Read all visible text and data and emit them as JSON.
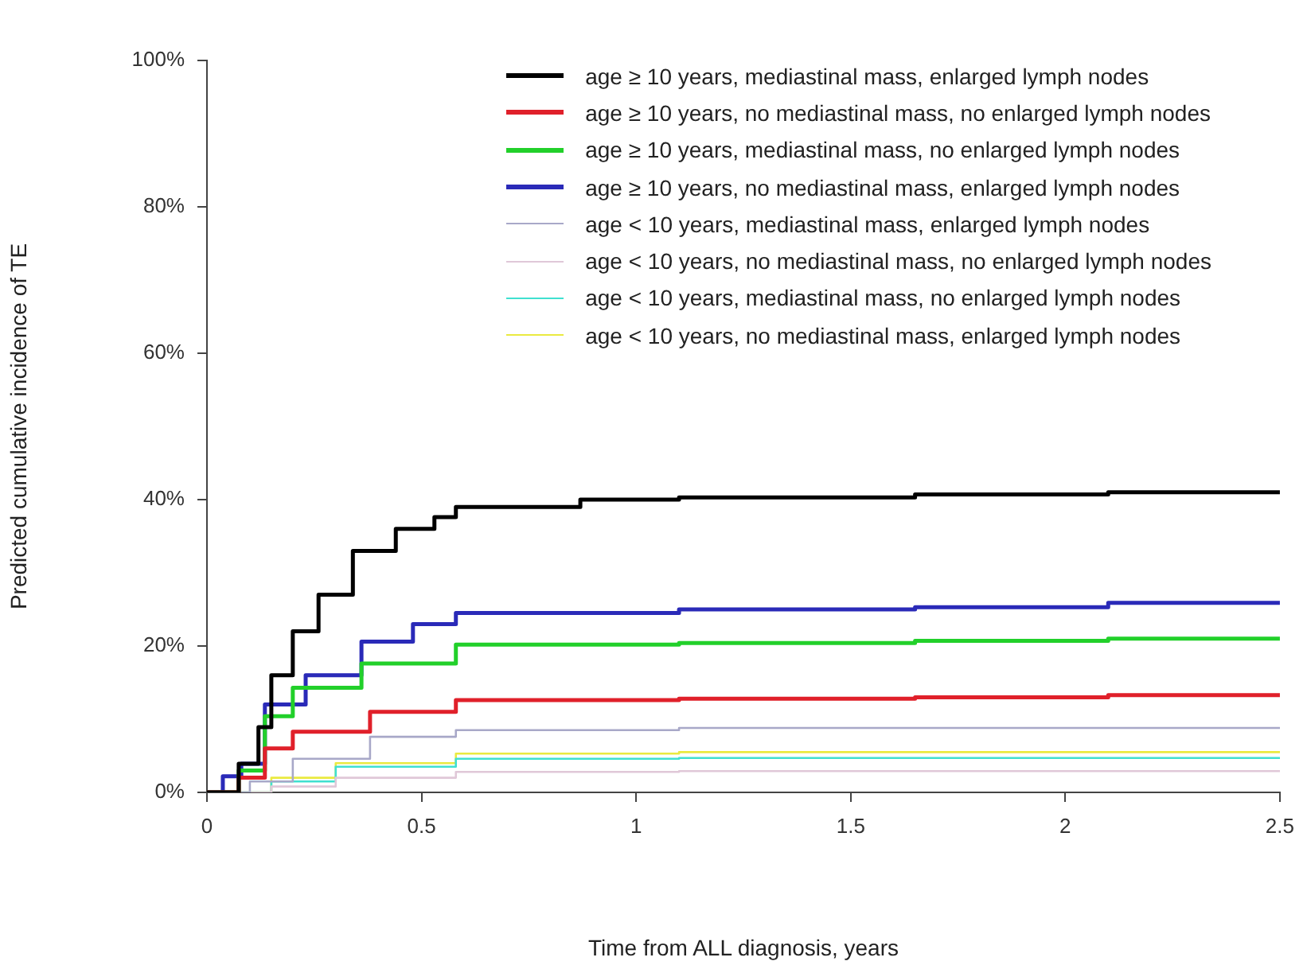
{
  "chart_data": {
    "type": "step",
    "xlabel": "Time from ALL diagnosis, years",
    "ylabel": "Predicted cumulative incidence of TE",
    "xlim": [
      0,
      2.5
    ],
    "xticks": [
      0,
      0.5,
      1,
      1.5,
      2,
      2.5
    ],
    "ylim": [
      0,
      100
    ],
    "yticks": [
      {
        "value": 0,
        "label": "0%"
      },
      {
        "value": 20,
        "label": "20%"
      },
      {
        "value": 40,
        "label": "40%"
      },
      {
        "value": 60,
        "label": "60%"
      },
      {
        "value": 80,
        "label": "80%"
      },
      {
        "value": 100,
        "label": "100%"
      }
    ],
    "grid": false,
    "legend": "top right",
    "series": [
      {
        "name": "age ≥ 10 years, mediastinal mass, enlarged lymph nodes",
        "color": "#000000",
        "x": [
          0,
          0.026,
          0.074,
          0.12,
          0.15,
          0.2,
          0.26,
          0.34,
          0.44,
          0.53,
          0.58,
          0.87,
          1.1,
          1.65,
          2.1,
          2.5
        ],
        "values": [
          0,
          0,
          3.9,
          8.9,
          16,
          22,
          27,
          33,
          36,
          37.6,
          39,
          40,
          40.3,
          40.7,
          41,
          41
        ]
      },
      {
        "name": "age ≥ 10 years, no mediastinal mass, no enlarged lymph nodes",
        "color": "#e0202a",
        "x": [
          0,
          0.03,
          0.074,
          0.135,
          0.2,
          0.38,
          0.58,
          1.1,
          1.65,
          2.1,
          2.5
        ],
        "values": [
          0,
          0,
          2,
          6,
          8.3,
          11,
          12.6,
          12.8,
          13,
          13.3,
          13.3
        ]
      },
      {
        "name": "age ≥ 10 years, mediastinal mass, no enlarged lymph nodes",
        "color": "#22d02a",
        "x": [
          0,
          0.03,
          0.074,
          0.135,
          0.2,
          0.36,
          0.58,
          1.1,
          1.65,
          2.1,
          2.5
        ],
        "values": [
          0,
          0,
          3,
          10.4,
          14.3,
          17.6,
          20.2,
          20.4,
          20.7,
          21,
          21
        ]
      },
      {
        "name": "age ≥ 10 years, no mediastinal mass, enlarged lymph nodes",
        "color": "#2a2ab8",
        "x": [
          0,
          0.037,
          0.08,
          0.135,
          0.23,
          0.36,
          0.48,
          0.58,
          1.1,
          1.65,
          2.1,
          2.5
        ],
        "values": [
          0,
          2.2,
          3.9,
          12,
          16,
          20.6,
          23,
          24.5,
          25,
          25.3,
          25.9,
          25.9
        ]
      },
      {
        "name": "age < 10 years, mediastinal mass, enlarged lymph nodes",
        "color": "#a8a8c8",
        "x": [
          0,
          0.03,
          0.1,
          0.2,
          0.38,
          0.58,
          1.1,
          2.5
        ],
        "values": [
          0,
          0,
          1.5,
          4.6,
          7.6,
          8.5,
          8.8,
          8.9
        ]
      },
      {
        "name": "age < 10 years, no mediastinal mass, no enlarged lymph nodes",
        "color": "#e0c8d8",
        "x": [
          0,
          0.05,
          0.15,
          0.3,
          0.58,
          1.1,
          2.5
        ],
        "values": [
          0,
          0,
          0.8,
          2,
          2.8,
          2.9,
          3
        ]
      },
      {
        "name": "age < 10 years, mediastinal mass, no enlarged lymph nodes",
        "color": "#40e0d0",
        "x": [
          0,
          0.05,
          0.15,
          0.3,
          0.58,
          1.1,
          2.5
        ],
        "values": [
          0,
          0,
          1.5,
          3.5,
          4.6,
          4.7,
          4.8
        ]
      },
      {
        "name": "age < 10 years, no mediastinal mass, enlarged lymph nodes",
        "color": "#eaea40",
        "x": [
          0,
          0.05,
          0.15,
          0.3,
          0.58,
          1.1,
          2.5
        ],
        "values": [
          0,
          0,
          2,
          4,
          5.3,
          5.5,
          5.6
        ]
      }
    ]
  }
}
